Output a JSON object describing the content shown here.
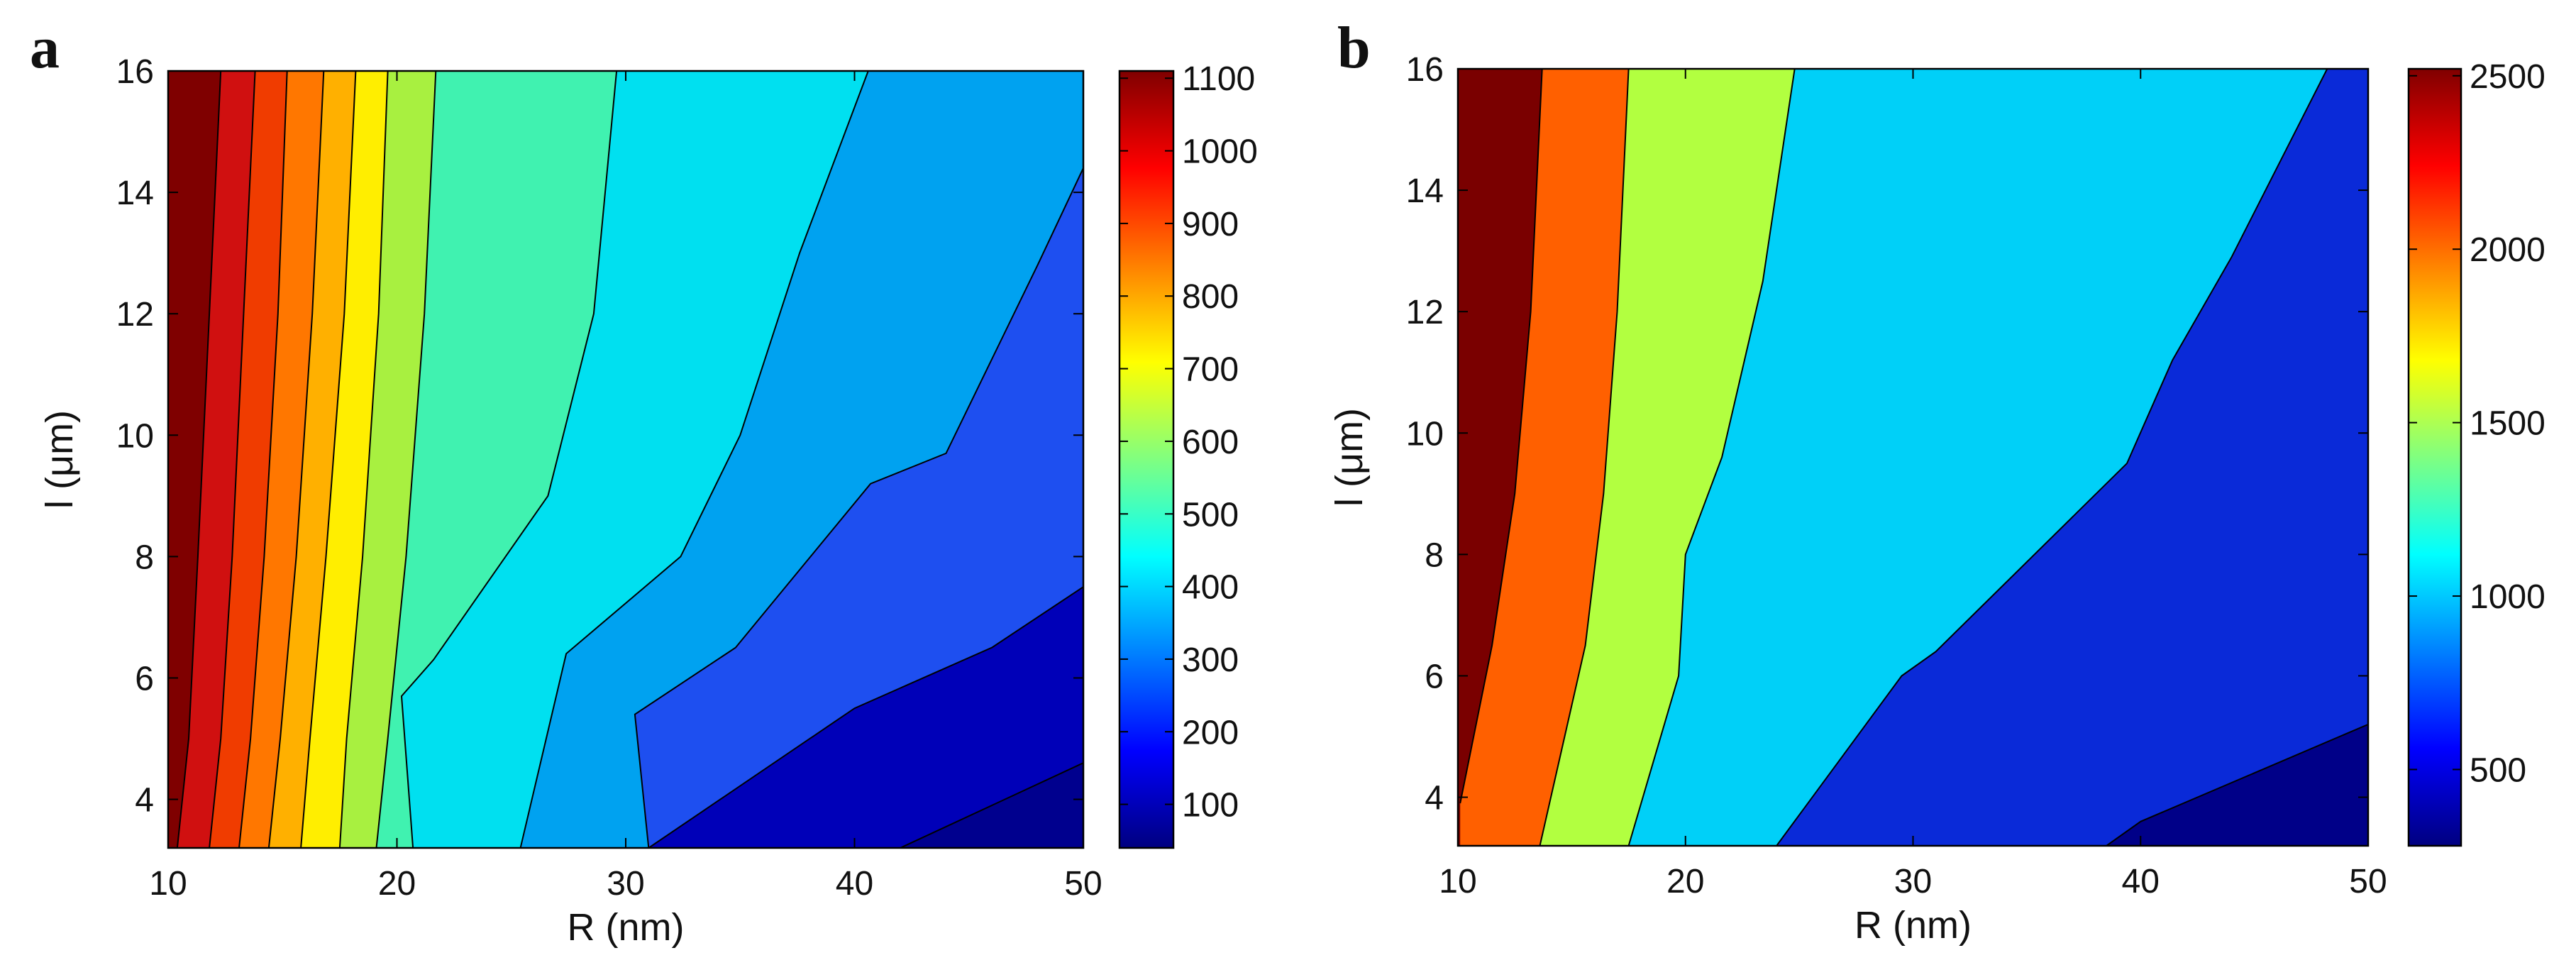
{
  "chart_data": [
    {
      "type": "contour",
      "panel_label": "a",
      "xlabel": "R (nm)",
      "ylabel": "l (μm)",
      "xlim": [
        10,
        50
      ],
      "ylim": [
        3.2,
        16
      ],
      "xticks": [
        10,
        20,
        30,
        40,
        50
      ],
      "yticks": [
        4,
        6,
        8,
        10,
        12,
        14,
        16
      ],
      "colorbar": {
        "ticks": [
          100,
          200,
          300,
          400,
          500,
          600,
          700,
          800,
          900,
          1000,
          1100
        ],
        "range": [
          40,
          1110
        ]
      },
      "levels": [
        {
          "value": 1100,
          "color": "#7f0000",
          "boundary": [
            [
              12.3,
              16
            ],
            [
              11.8,
              12
            ],
            [
              11.3,
              8
            ],
            [
              10.9,
              5
            ],
            [
              10.4,
              3.2
            ]
          ]
        },
        {
          "value": 1000,
          "color": "#d01010",
          "boundary": [
            [
              13.8,
              16
            ],
            [
              13.3,
              12
            ],
            [
              12.8,
              8
            ],
            [
              12.3,
              5
            ],
            [
              11.8,
              3.2
            ]
          ]
        },
        {
          "value": 900,
          "color": "#f03c00",
          "boundary": [
            [
              15.2,
              16
            ],
            [
              14.8,
              12
            ],
            [
              14.2,
              8
            ],
            [
              13.6,
              5
            ],
            [
              13.1,
              3.2
            ]
          ]
        },
        {
          "value": 800,
          "color": "#ff7700",
          "boundary": [
            [
              16.8,
              16
            ],
            [
              16.3,
              12
            ],
            [
              15.6,
              8
            ],
            [
              14.9,
              5
            ],
            [
              14.4,
              3.2
            ]
          ]
        },
        {
          "value": 700,
          "color": "#ffb000",
          "boundary": [
            [
              18.2,
              16
            ],
            [
              17.7,
              12
            ],
            [
              16.9,
              8
            ],
            [
              16.2,
              5
            ],
            [
              15.8,
              3.2
            ]
          ]
        },
        {
          "value": 600,
          "color": "#ffee00",
          "boundary": [
            [
              19.6,
              16
            ],
            [
              19.2,
              12
            ],
            [
              18.5,
              8
            ],
            [
              17.8,
              5
            ],
            [
              17.5,
              3.2
            ]
          ]
        },
        {
          "value": 500,
          "color": "#a8f040",
          "boundary": [
            [
              21.7,
              16
            ],
            [
              21.2,
              12
            ],
            [
              20.4,
              8
            ],
            [
              19.6,
              5
            ],
            [
              19.1,
              3.2
            ]
          ]
        },
        {
          "value": 400,
          "color": "#40f2b0",
          "boundary": [
            [
              29.6,
              16
            ],
            [
              28.6,
              12
            ],
            [
              26.6,
              9
            ],
            [
              21.6,
              6.3
            ],
            [
              20.2,
              5.7
            ],
            [
              20.7,
              3.2
            ]
          ]
        },
        {
          "value": 300,
          "color": "#00e0f0",
          "boundary": [
            [
              40.6,
              16
            ],
            [
              37.6,
              13
            ],
            [
              35,
              10
            ],
            [
              32.4,
              8
            ],
            [
              27.4,
              6.4
            ],
            [
              25.4,
              3.2
            ]
          ]
        },
        {
          "value": 200,
          "color": "#00a2f0",
          "boundary": [
            [
              50,
              14.4
            ],
            [
              48,
              12.8
            ],
            [
              44,
              9.7
            ],
            [
              40.7,
              9.2
            ],
            [
              34.8,
              6.5
            ],
            [
              30.4,
              5.4
            ],
            [
              31,
              3.2
            ]
          ]
        },
        {
          "value": 100,
          "color": "#1e4ff0",
          "boundary": [
            [
              50,
              7.5
            ],
            [
              46,
              6.5
            ],
            [
              40,
              5.5
            ],
            [
              31,
              3.2
            ]
          ]
        },
        {
          "value": 40,
          "color": "#0000b8",
          "boundary": [
            [
              50,
              4.6
            ],
            [
              42,
              3.2
            ]
          ]
        }
      ],
      "background_color": "#00008e"
    },
    {
      "type": "contour",
      "panel_label": "b",
      "xlabel": "R (nm)",
      "ylabel": "l (μm)",
      "xlim": [
        10,
        50
      ],
      "ylim": [
        3.2,
        16
      ],
      "xticks": [
        10,
        20,
        30,
        40,
        50
      ],
      "yticks": [
        4,
        6,
        8,
        10,
        12,
        14,
        16
      ],
      "colorbar": {
        "ticks": [
          500,
          1000,
          1500,
          2000,
          2500
        ],
        "range": [
          280,
          2520
        ]
      },
      "levels": [
        {
          "value": 2500,
          "color": "#7a0000",
          "boundary": [
            [
              13.7,
              16
            ],
            [
              13.2,
              12
            ],
            [
              12.5,
              9
            ],
            [
              11.5,
              6.5
            ],
            [
              10.1,
              3.9
            ]
          ]
        },
        {
          "value": 2000,
          "color": "#ff6000",
          "boundary": [
            [
              17.5,
              16
            ],
            [
              17,
              12
            ],
            [
              16.4,
              9
            ],
            [
              15.6,
              6.5
            ],
            [
              13.6,
              3.2
            ]
          ]
        },
        {
          "value": 1500,
          "color": "#b2ff40",
          "boundary": [
            [
              24.8,
              16
            ],
            [
              23.4,
              12.5
            ],
            [
              21.6,
              9.6
            ],
            [
              20,
              8
            ],
            [
              19.7,
              6
            ],
            [
              17.5,
              3.2
            ]
          ]
        },
        {
          "value": 1000,
          "color": "#00d0f8",
          "boundary": [
            [
              48.2,
              16
            ],
            [
              44,
              12.9
            ],
            [
              41.4,
              11.2
            ],
            [
              39.4,
              9.5
            ],
            [
              31,
              6.4
            ],
            [
              29.5,
              6
            ],
            [
              24,
              3.2
            ]
          ]
        },
        {
          "value": 500,
          "color": "#0a2ad8",
          "boundary": [
            [
              50,
              5.2
            ],
            [
              40,
              3.6
            ],
            [
              38.5,
              3.2
            ]
          ]
        }
      ],
      "background_color": "#000088"
    }
  ]
}
